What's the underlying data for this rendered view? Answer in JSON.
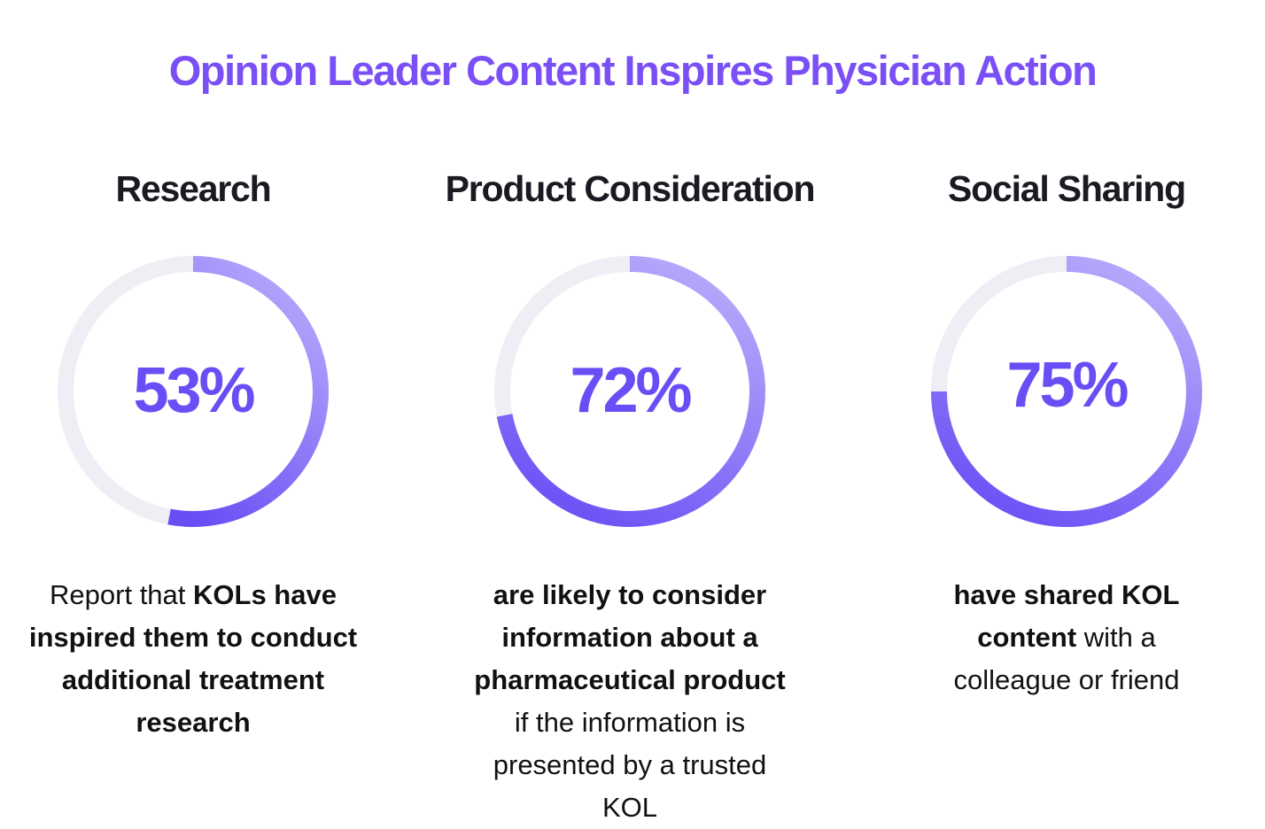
{
  "title": "Opinion Leader Content Inspires Physician Action",
  "colors": {
    "title": "#7a4ff5",
    "ring_start": "#b4a8fb",
    "ring_end": "#6a4ef5",
    "track": "#efeef5"
  },
  "chart_data": {
    "type": "pie",
    "subtype": "donut-progress",
    "items": [
      {
        "category": "Research",
        "value": 53,
        "label": "53%",
        "description": [
          {
            "text": "Report that ",
            "bold": false
          },
          {
            "text": "KOLs have inspired them to conduct additional treatment research",
            "bold": true
          }
        ]
      },
      {
        "category": "Product Consideration",
        "value": 72,
        "label": "72%",
        "description": [
          {
            "text": "are likely to consider information about a pharmaceutical product",
            "bold": true
          },
          {
            "text": " if the information is presented by a trusted KOL",
            "bold": false
          }
        ]
      },
      {
        "category": "Social Sharing",
        "value": 75,
        "label": "75%",
        "description": [
          {
            "text": "have shared KOL content",
            "bold": true
          },
          {
            "text": " with a colleague or friend",
            "bold": false
          }
        ]
      }
    ]
  }
}
